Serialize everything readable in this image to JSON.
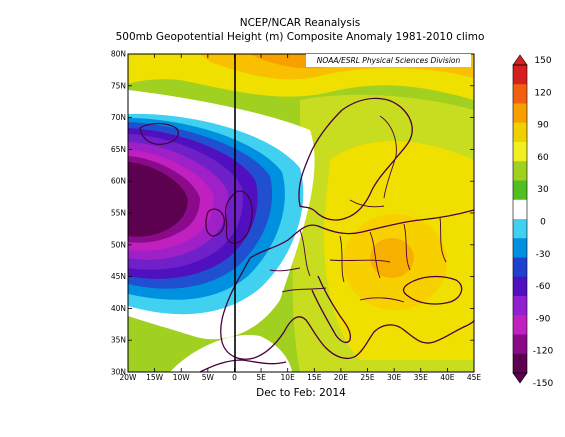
{
  "header": {
    "title": "NCEP/NCAR Reanalysis",
    "subtitle": "500mb Geopotential Height (m) Composite Anomaly 1981-2010 climo"
  },
  "map": {
    "credit": "NOAA/ESRL Physical Sciences Division",
    "period": "Dec to Feb: 2014",
    "lat_labels": [
      "80N",
      "75N",
      "70N",
      "65N",
      "60N",
      "55N",
      "50N",
      "45N",
      "40N",
      "35N",
      "30N"
    ],
    "lon_labels": [
      "20W",
      "15W",
      "10W",
      "5W",
      "0",
      "5E",
      "10E",
      "15E",
      "20E",
      "25E",
      "30E",
      "35E",
      "40E",
      "45E"
    ],
    "extent": {
      "lon": [
        -20,
        45
      ],
      "lat": [
        30,
        80
      ]
    }
  },
  "colorbar": {
    "ticks": [
      "150",
      "120",
      "90",
      "60",
      "30",
      "0",
      "-30",
      "-60",
      "-90",
      "-120",
      "-150"
    ],
    "colors": [
      "#d62020",
      "#f06010",
      "#f8a000",
      "#f0d000",
      "#f0f020",
      "#a0d020",
      "#50c020",
      "#ffffff",
      "#40d0f0",
      "#0090e0",
      "#2040d0",
      "#5010c0",
      "#9020d0",
      "#c020c0",
      "#8a0a8a",
      "#5c0050"
    ]
  },
  "chart_data": {
    "type": "heatmap",
    "title": "500mb Geopotential Height (m) Composite Anomaly 1981-2010 climo",
    "xlabel": "Dec to Feb: 2014",
    "xlim": [
      -20,
      45
    ],
    "ylim": [
      30,
      80
    ],
    "colorbar_range": [
      -150,
      150
    ],
    "colorbar_step": 15,
    "features": [
      {
        "name": "negative anomaly core",
        "lon": -18,
        "lat": 55,
        "value": -150
      },
      {
        "name": "positive anomaly maximum",
        "lon": 28,
        "lat": 50,
        "value": 90
      },
      {
        "name": "positive anomaly arctic band",
        "lon": 15,
        "lat": 79,
        "value": 75
      }
    ]
  }
}
